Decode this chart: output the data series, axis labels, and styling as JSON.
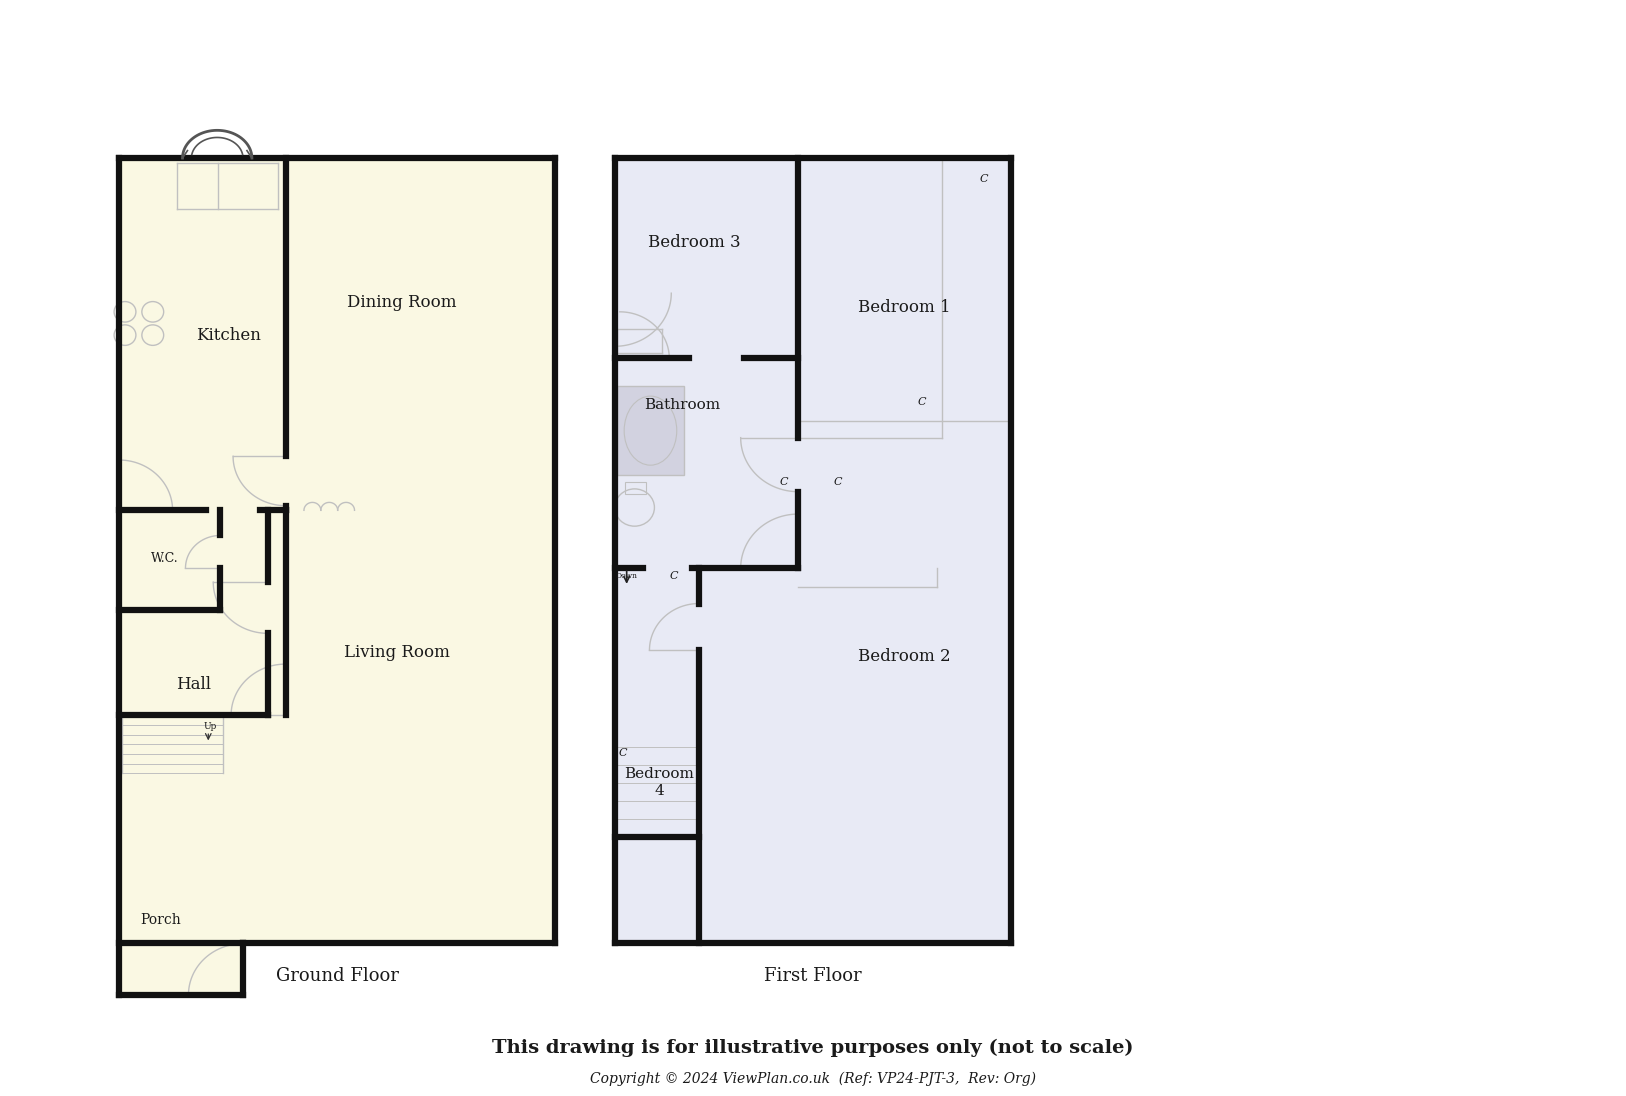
{
  "bg": "#ffffff",
  "gc": "#faf8e3",
  "fc": "#e8eaf5",
  "wc": "#111111",
  "thin_color": "#c0c0c0",
  "title": "This drawing is for illustrative purposes only (not to scale)",
  "subtitle": "Copyright © 2024 ViewPlan.co.uk  (Ref: VP24-PJT-3,  Rev: Org)",
  "gf_label": "Ground Floor",
  "ff_label": "First Floor"
}
